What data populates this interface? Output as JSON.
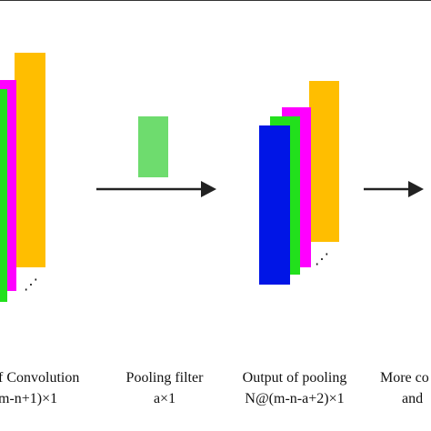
{
  "colors": {
    "yellow": "#FFBE00",
    "magenta": "#FF00FF",
    "green": "#22E01C",
    "blue": "#0015E6",
    "pooling_filter": "#6EDC6E",
    "arrow": "#222222",
    "background": "#FFFFFF"
  },
  "labels": {
    "convolution_title": "f Convolution",
    "convolution_dims": "m-n+1)×1",
    "pooling_filter_title": "Pooling filter",
    "pooling_filter_dims": "a×1",
    "output_pooling_title": "Output of pooling",
    "output_pooling_dims": "N@(m-n-a+2)×1",
    "more_title": "More co",
    "more_sub": "and"
  },
  "ellipsis": "⋰"
}
